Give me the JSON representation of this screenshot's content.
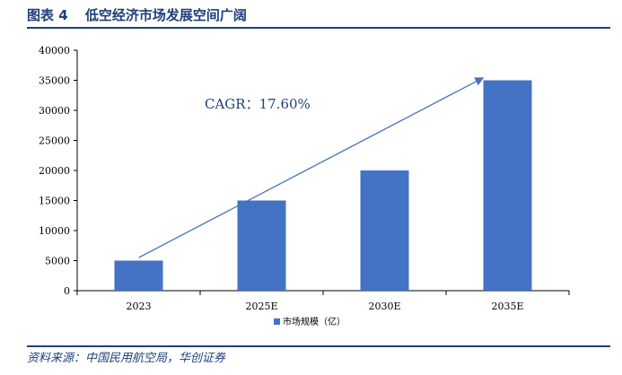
{
  "header": {
    "figure_no": "图表 4",
    "title": "低空经济市场发展空间广阔"
  },
  "footer": {
    "source": "资料来源：中国民用航空局，华创证券"
  },
  "colors": {
    "accent": "#1f3f7a",
    "bar": "#4472c4",
    "arrow": "#4472c4",
    "annotation": "#1f3f7a",
    "axis": "#000000"
  },
  "chart_data": {
    "type": "bar",
    "categories": [
      "2023",
      "2025E",
      "2030E",
      "2035E"
    ],
    "series": [
      {
        "name": "市场规模（亿）",
        "values": [
          5000,
          15000,
          20000,
          35000
        ]
      }
    ],
    "ylim": [
      0,
      40000
    ],
    "yticks": [
      0,
      5000,
      10000,
      15000,
      20000,
      25000,
      30000,
      35000,
      40000
    ],
    "grid": false,
    "legend_position": "bottom",
    "annotation": {
      "text": "CAGR：17.60%",
      "arrow": {
        "from": {
          "category": "2023",
          "value": 5500
        },
        "to": {
          "category": "2035E",
          "value": 35500
        }
      }
    }
  }
}
